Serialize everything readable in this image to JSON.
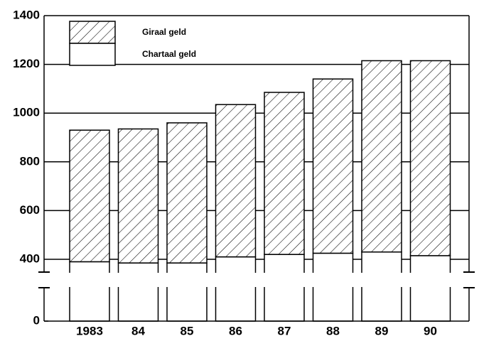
{
  "chart_data": {
    "type": "stacked_bar",
    "categories": [
      "1983",
      "84",
      "85",
      "86",
      "87",
      "88",
      "89",
      "90"
    ],
    "series": [
      {
        "name": "Chartaal geld",
        "color": "#ffffff",
        "values": [
          390,
          385,
          385,
          410,
          420,
          425,
          430,
          415
        ]
      },
      {
        "name": "Giraal geld",
        "color": "hatch",
        "values": [
          540,
          550,
          575,
          625,
          665,
          715,
          785,
          800
        ]
      }
    ],
    "ylim": [
      0,
      1400
    ],
    "yticks": [
      0,
      400,
      600,
      800,
      1000,
      1200,
      1400
    ],
    "y_break": [
      0,
      400
    ],
    "grid": true,
    "legend": "top-left"
  }
}
